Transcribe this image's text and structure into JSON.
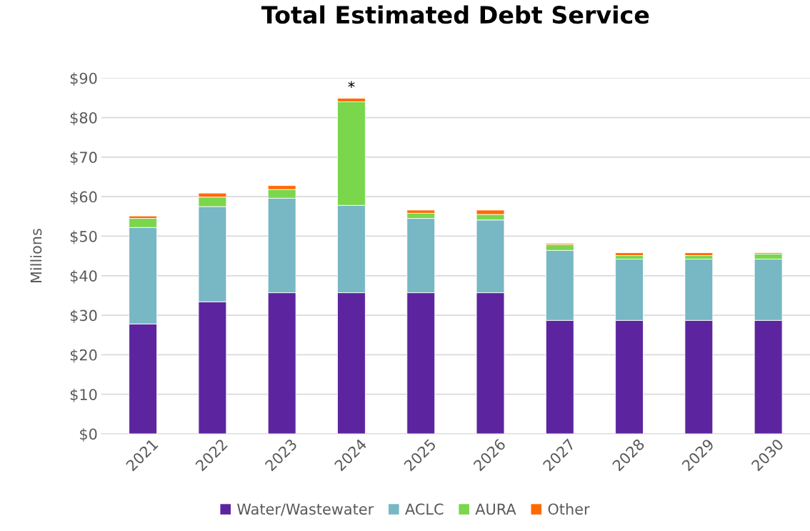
{
  "chart_data": {
    "type": "bar",
    "title": "Total Estimated Debt Service",
    "ylabel": "Millions",
    "stacked": true,
    "categories": [
      "2021",
      "2022",
      "2023",
      "2024",
      "2025",
      "2026",
      "2027",
      "2028",
      "2029",
      "2030"
    ],
    "series": [
      {
        "name": "Water/Wastewater",
        "color": "#5c259f",
        "values": [
          27.8,
          33.4,
          35.7,
          35.7,
          35.7,
          35.7,
          28.7,
          28.7,
          28.7,
          28.7
        ]
      },
      {
        "name": "ACLC",
        "color": "#78b7c4",
        "values": [
          24.4,
          24.1,
          23.9,
          22.1,
          18.8,
          18.4,
          17.7,
          15.5,
          15.5,
          15.5
        ]
      },
      {
        "name": "AURA",
        "color": "#7ad64b",
        "values": [
          2.3,
          2.4,
          2.2,
          26.2,
          1.3,
          1.4,
          1.5,
          0.9,
          0.9,
          1.3
        ]
      },
      {
        "name": "Other",
        "color": "#ff6a00",
        "values": [
          0.6,
          1.0,
          1.0,
          0.9,
          0.8,
          1.1,
          0.3,
          0.7,
          0.7,
          0.3
        ]
      }
    ],
    "ylim": [
      0,
      90
    ],
    "yticks": [
      {
        "value": 0,
        "label": "$0"
      },
      {
        "value": 10,
        "label": "$10"
      },
      {
        "value": 20,
        "label": "$20"
      },
      {
        "value": 30,
        "label": "$30"
      },
      {
        "value": 40,
        "label": "$40"
      },
      {
        "value": 50,
        "label": "$50"
      },
      {
        "value": 60,
        "label": "$60"
      },
      {
        "value": 70,
        "label": "$70"
      },
      {
        "value": 80,
        "label": "$80"
      },
      {
        "value": 90,
        "label": "$90"
      }
    ],
    "annotations": [
      {
        "text": "*",
        "x": "2024",
        "y": 84.9
      }
    ],
    "grid": "y",
    "legend": "bottom"
  }
}
